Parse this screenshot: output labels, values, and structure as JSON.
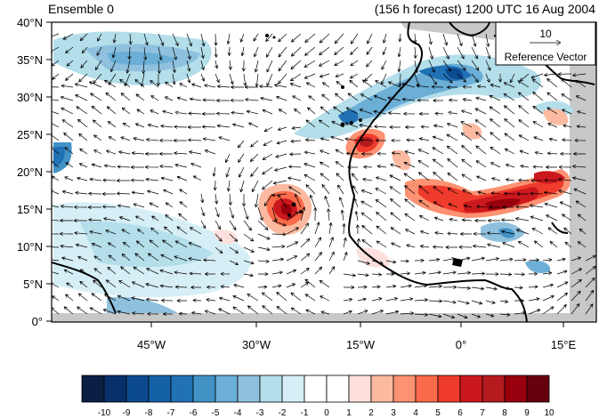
{
  "title_left": "Ensemble 0",
  "title_right": "(156 h forecast) 1200 UTC 16 Aug 2004",
  "lat_labels": [
    "40°N",
    "35°N",
    "30°N",
    "25°N",
    "20°N",
    "15°N",
    "10°N",
    "5°N",
    "0°"
  ],
  "lon_labels": [
    "45°W",
    "30°W",
    "15°W",
    "0°",
    "15°E"
  ],
  "reference_vector": {
    "value": "10",
    "label": "Reference Vector"
  },
  "colorbar": {
    "labels": [
      "-10",
      "-9",
      "-8",
      "-7",
      "-6",
      "-5",
      "-4",
      "-3",
      "-2",
      "-1",
      "0",
      "1",
      "2",
      "3",
      "4",
      "5",
      "6",
      "7",
      "8",
      "9",
      "10"
    ],
    "colors": [
      "#0b1f45",
      "#08306b",
      "#0b4a8f",
      "#1561a8",
      "#2171b5",
      "#4292c6",
      "#6baed6",
      "#8fc1de",
      "#b3deea",
      "#d6eff6",
      "#ffffff",
      "#ffffff",
      "#fde0dd",
      "#fcbba1",
      "#fc9272",
      "#fb6a4a",
      "#ef3b2c",
      "#cb181d",
      "#b51a1f",
      "#99000d",
      "#67000d"
    ]
  },
  "colors": {
    "land_gray": "#c8c8c8",
    "coast": "#000000"
  }
}
